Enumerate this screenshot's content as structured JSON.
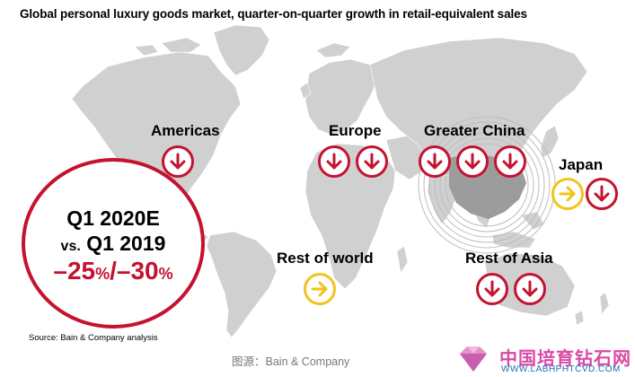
{
  "title": "Global personal luxury goods market, quarter-on-quarter growth in retail-equivalent sales",
  "colors": {
    "decline": "#c41230",
    "stable": "#f0c419",
    "land": "#d0d0d0"
  },
  "regions": [
    {
      "id": "americas",
      "label": "Americas",
      "trends": [
        "down-arrow-icon"
      ]
    },
    {
      "id": "europe",
      "label": "Europe",
      "trends": [
        "down-arrow-icon",
        "down-arrow-icon"
      ]
    },
    {
      "id": "greater-china",
      "label": "Greater China",
      "trends": [
        "down-arrow-icon",
        "down-arrow-icon",
        "down-arrow-icon"
      ]
    },
    {
      "id": "japan",
      "label": "Japan",
      "trends": [
        "right-arrow-icon",
        "down-arrow-icon"
      ]
    },
    {
      "id": "rest-of-world",
      "label": "Rest of world",
      "trends": [
        "right-arrow-icon"
      ]
    },
    {
      "id": "rest-of-asia",
      "label": "Rest of Asia",
      "trends": [
        "down-arrow-icon",
        "down-arrow-icon"
      ]
    }
  ],
  "summary": {
    "period": "Q1 2020E",
    "vs": "vs.",
    "baseline": "Q1 2019",
    "range_low": "–25",
    "range_high": "–30",
    "pct": "%",
    "separator": "/"
  },
  "source": "Source: Bain & Company analysis",
  "caption": "图源：Bain & Company",
  "watermark": {
    "name": "中国培育钻石网",
    "url": "WWW.LABHPHTCVD.COM"
  }
}
